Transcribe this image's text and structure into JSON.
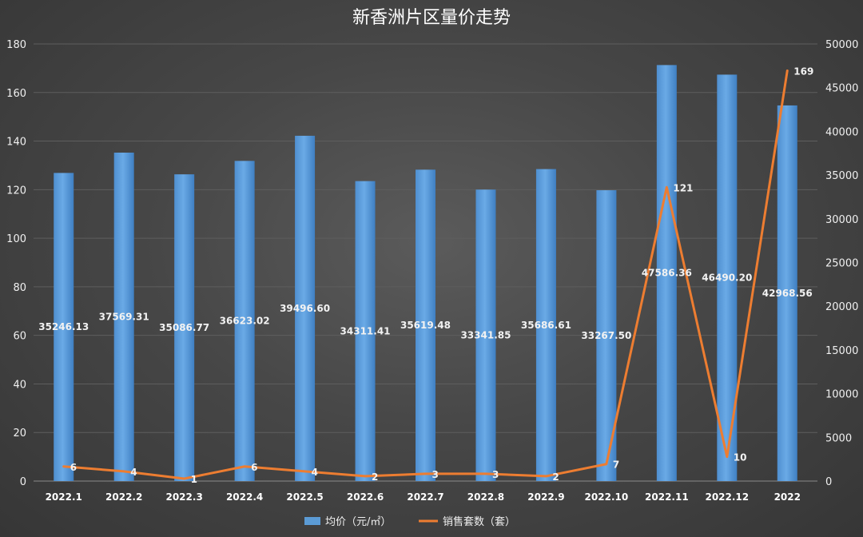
{
  "chart_data": {
    "type": "bar",
    "title": "新香洲片区量价走势",
    "categories": [
      "2022.1",
      "2022.2",
      "2022.3",
      "2022.4",
      "2022.5",
      "2022.6",
      "2022.7",
      "2022.8",
      "2022.9",
      "2022.10",
      "2022.11",
      "2022.12",
      "2022"
    ],
    "series": [
      {
        "name": "均价（元/㎡）",
        "type": "bar",
        "axis": "right",
        "color": "#5b9bd5",
        "values": [
          35246.13,
          37569.31,
          35086.77,
          36623.02,
          39496.6,
          34311.41,
          35619.48,
          33341.85,
          35686.61,
          33267.5,
          47586.36,
          46490.2,
          42968.56
        ],
        "labels": [
          "35246.13",
          "37569.31",
          "35086.77",
          "36623.02",
          "39496.60",
          "34311.41",
          "35619.48",
          "33341.85",
          "35686.61",
          "33267.50",
          "47586.36",
          "46490.20",
          "42968.56"
        ]
      },
      {
        "name": "销售套数（套）",
        "type": "line",
        "axis": "left",
        "color": "#ed7d31",
        "values": [
          6,
          4,
          1,
          6,
          4,
          2,
          3,
          3,
          2,
          7,
          121,
          10,
          169
        ],
        "labels": [
          "6",
          "4",
          "1",
          "6",
          "4",
          "2",
          "3",
          "3",
          "2",
          "7",
          "121",
          "10",
          "169"
        ]
      }
    ],
    "y_left": {
      "min": 0,
      "max": 180,
      "ticks": [
        "0",
        "20",
        "40",
        "60",
        "80",
        "100",
        "120",
        "140",
        "160",
        "180"
      ]
    },
    "y_right": {
      "min": 0,
      "max": 50000,
      "ticks": [
        "0",
        "5000",
        "10000",
        "15000",
        "20000",
        "25000",
        "30000",
        "35000",
        "40000",
        "45000",
        "50000"
      ]
    },
    "grid": true,
    "legend": "bottom"
  }
}
